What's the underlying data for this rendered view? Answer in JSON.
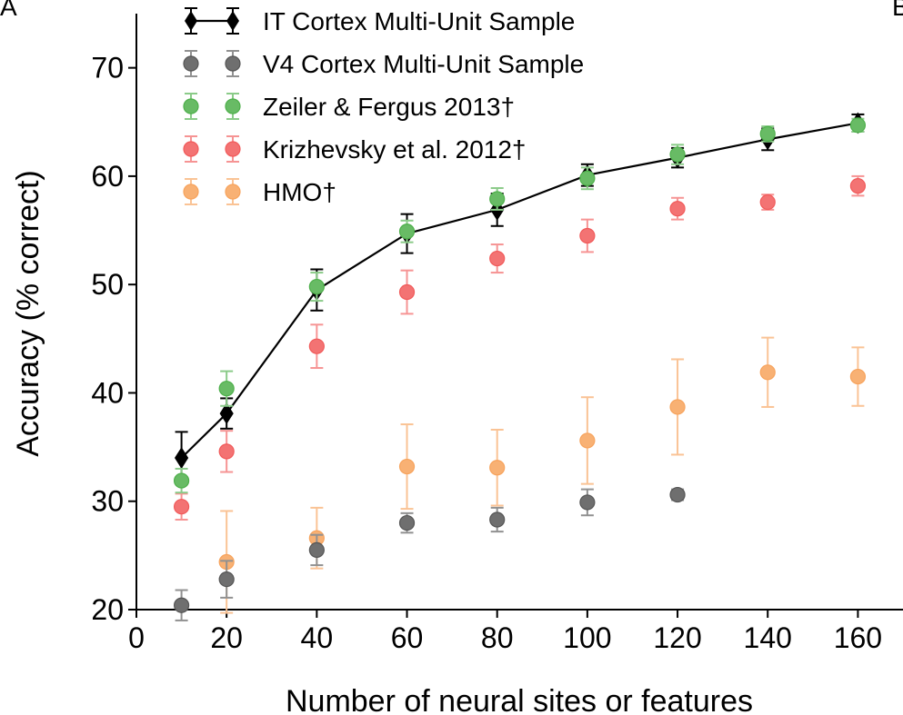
{
  "panel_labels": [
    "A",
    "B"
  ],
  "chart_data": {
    "type": "scatter",
    "title": "",
    "xlabel": "Number of neural sites or features",
    "ylabel": "Accuracy (% correct)",
    "xlim": [
      0,
      170
    ],
    "ylim": [
      20,
      75
    ],
    "xticks": [
      0,
      20,
      40,
      60,
      80,
      100,
      120,
      140,
      160
    ],
    "yticks": [
      20,
      30,
      40,
      50,
      60,
      70
    ],
    "grid": false,
    "legend": {
      "placement": "top-left"
    },
    "series": [
      {
        "name": "IT Cortex Multi-Unit Sample",
        "color": "#000000",
        "marker": "diamond",
        "line": true,
        "x": [
          10,
          20,
          40,
          60,
          80,
          100,
          120,
          140,
          160
        ],
        "y": [
          34.0,
          38.1,
          49.5,
          54.7,
          56.9,
          60.1,
          61.7,
          63.4,
          64.9
        ],
        "err": [
          2.4,
          1.4,
          1.9,
          1.8,
          1.5,
          1.0,
          0.9,
          1.0,
          0.8
        ]
      },
      {
        "name": "V4 Cortex Multi-Unit Sample",
        "color": "#555555",
        "marker": "circle",
        "line": false,
        "x": [
          10,
          20,
          40,
          60,
          80,
          100,
          120
        ],
        "y": [
          20.4,
          22.8,
          25.5,
          28.0,
          28.3,
          29.9,
          30.6
        ],
        "err": [
          1.4,
          1.7,
          1.4,
          0.9,
          1.1,
          1.2,
          0.5
        ]
      },
      {
        "name": "Zeiler & Fergus 2013†",
        "color": "#4daf4a",
        "marker": "circle",
        "line": false,
        "x": [
          10,
          20,
          40,
          60,
          80,
          100,
          120,
          140,
          160
        ],
        "y": [
          31.9,
          40.4,
          49.8,
          54.9,
          57.9,
          59.8,
          62.0,
          63.9,
          64.7
        ],
        "err": [
          1.1,
          1.6,
          1.3,
          1.0,
          1.0,
          1.0,
          0.9,
          0.7,
          0.6
        ]
      },
      {
        "name": "Krizhevsky et al. 2012†",
        "color": "#f15a5a",
        "marker": "circle",
        "line": false,
        "x": [
          10,
          20,
          40,
          60,
          80,
          100,
          120,
          140,
          160
        ],
        "y": [
          29.5,
          34.6,
          44.3,
          49.3,
          52.4,
          54.5,
          57.0,
          57.6,
          59.1
        ],
        "err": [
          1.2,
          1.9,
          2.0,
          2.0,
          1.3,
          1.5,
          1.0,
          0.7,
          0.9
        ]
      },
      {
        "name": "HMO†",
        "color": "#f7a35c",
        "marker": "circle",
        "line": false,
        "x": [
          20,
          40,
          60,
          80,
          100,
          120,
          140,
          160
        ],
        "y": [
          24.4,
          26.6,
          33.2,
          33.1,
          35.6,
          38.7,
          41.9,
          41.5
        ],
        "err": [
          4.7,
          2.8,
          3.9,
          3.5,
          4.0,
          4.4,
          3.2,
          2.7
        ]
      }
    ]
  }
}
